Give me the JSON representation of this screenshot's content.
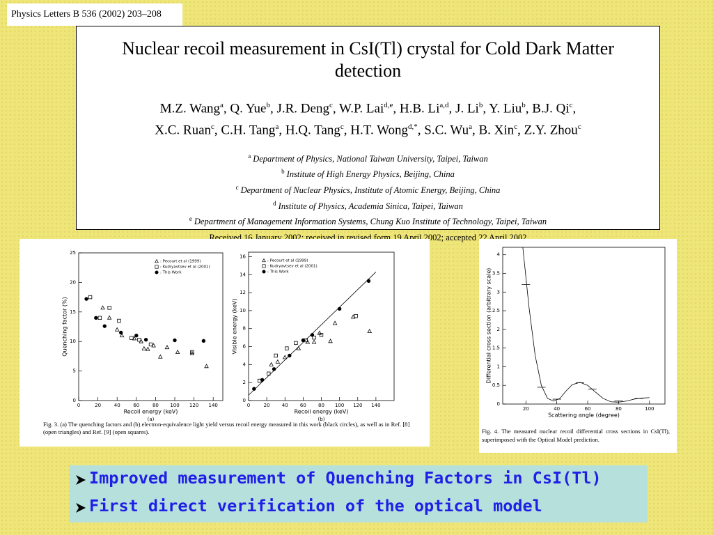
{
  "header": {
    "citation": "Physics Letters B 536 (2002) 203–208"
  },
  "paper": {
    "title": "Nuclear recoil measurement in CsI(Tl) crystal for Cold Dark Matter detection",
    "author_lines": [
      [
        {
          "text": "M.Z. Wang",
          "sup": "a"
        },
        {
          "text": ", Q. Yue",
          "sup": "b"
        },
        {
          "text": ", J.R. Deng",
          "sup": "c"
        },
        {
          "text": ", W.P. Lai",
          "sup": "d,e"
        },
        {
          "text": ", H.B. Li",
          "sup": "a,d"
        },
        {
          "text": ", J. Li",
          "sup": "b"
        },
        {
          "text": ", Y. Liu",
          "sup": "b"
        },
        {
          "text": ", B.J. Qi",
          "sup": "c"
        },
        {
          "text": ","
        }
      ],
      [
        {
          "text": "X.C. Ruan",
          "sup": "c"
        },
        {
          "text": ", C.H. Tang",
          "sup": "a"
        },
        {
          "text": ", H.Q. Tang",
          "sup": "c"
        },
        {
          "text": ", H.T. Wong",
          "sup": "d,*"
        },
        {
          "text": ", S.C. Wu",
          "sup": "a"
        },
        {
          "text": ", B.  Xin",
          "sup": "c"
        },
        {
          "text": ", Z.Y. Zhou",
          "sup": "c"
        }
      ]
    ],
    "affiliations": [
      {
        "mark": "a",
        "text": "Department of Physics, National Taiwan University, Taipei, Taiwan"
      },
      {
        "mark": "b",
        "text": "Institute of High Energy Physics, Beijing, China"
      },
      {
        "mark": "c",
        "text": "Department of Nuclear Physics, Institute of Atomic Energy, Beijing, China"
      },
      {
        "mark": "d",
        "text": "Institute of Physics, Academia Sinica, Taipei, Taiwan"
      },
      {
        "mark": "e",
        "text": "Department of Management Information Systems, Chung Kuo Institute of Technology, Taipei, Taiwan"
      }
    ],
    "received": "Received 16 January 2002; received in revised form 19 April 2002; accepted 22 April 2002"
  },
  "chart_data": [
    {
      "type": "scatter",
      "x_label": "Recoil energy (keV)",
      "y_label": "Quenching factor (%)",
      "panel_label": "(a)",
      "xlim": [
        0,
        150
      ],
      "xticks": [
        0,
        20,
        40,
        60,
        80,
        100,
        120,
        140
      ],
      "ylim": [
        0,
        25
      ],
      "yticks": [
        0,
        5,
        10,
        15,
        20,
        25
      ],
      "legend": "upper right",
      "series": [
        {
          "name": ": Pecourt et al (1999)",
          "marker": "triangle",
          "color": "#000000",
          "x": [
            25,
            32,
            40,
            45,
            58,
            65,
            68,
            72,
            78,
            85,
            92,
            103,
            118,
            133
          ],
          "values": [
            15.7,
            14,
            12,
            11,
            10.5,
            10,
            8.8,
            8.7,
            9.3,
            7.4,
            9,
            8.2,
            8,
            5.8
          ]
        },
        {
          "name": ": Kudryavtsev et al (2001)",
          "marker": "square",
          "color": "#000000",
          "x": [
            12,
            22,
            32,
            42,
            55,
            63,
            75,
            118
          ],
          "values": [
            17.5,
            14,
            15.7,
            13.5,
            10.6,
            10.3,
            9.5,
            8.2
          ]
        },
        {
          "name": ": This Work",
          "marker": "circle",
          "color": "#000000",
          "x": [
            8,
            18,
            27,
            44,
            60,
            70,
            100,
            130
          ],
          "values": [
            17.2,
            14,
            12.6,
            11.5,
            11,
            10.3,
            10.2,
            10.1
          ]
        }
      ]
    },
    {
      "type": "scatter",
      "x_label": "Recoil energy (keV)",
      "y_label": "Visible energy (keV)",
      "panel_label": "(b)",
      "xlim": [
        0,
        160
      ],
      "xticks": [
        0,
        20,
        40,
        60,
        80,
        100,
        120,
        140
      ],
      "ylim": [
        0,
        16.5
      ],
      "yticks": [
        0,
        2,
        4,
        6,
        8,
        10,
        12,
        14,
        16
      ],
      "legend": "upper left",
      "series": [
        {
          "name": ": Pecourt et al (1999)",
          "marker": "triangle",
          "color": "#000000",
          "x": [
            25,
            32,
            40,
            55,
            65,
            72,
            78,
            90,
            95,
            115,
            133
          ],
          "values": [
            4,
            4.3,
            4.8,
            5.8,
            6.5,
            6.5,
            7.5,
            6.6,
            8.6,
            9.3,
            7.7
          ]
        },
        {
          "name": ": Kudryavtsev et al (2001)",
          "marker": "square",
          "color": "#000000",
          "x": [
            12,
            22,
            30,
            42,
            52,
            63,
            72,
            80,
            118
          ],
          "values": [
            2.2,
            3,
            5,
            5.8,
            6.4,
            6.7,
            7,
            7.3,
            9.4
          ]
        },
        {
          "name": ": This Work",
          "marker": "circle",
          "color": "#000000",
          "x": [
            6,
            15,
            28,
            45,
            60,
            70,
            100,
            132
          ],
          "values": [
            1.3,
            2.3,
            3.5,
            5,
            6.7,
            7.3,
            10.2,
            13.3
          ]
        },
        {
          "marker": "line",
          "color": "#000000",
          "x": [
            0,
            140
          ],
          "values": [
            0.6,
            14.3
          ]
        }
      ]
    },
    {
      "type": "line",
      "x_label": "Scattering angle (degree)",
      "y_label": "Differential cross section (arbitrary scale)",
      "xlim": [
        5,
        110
      ],
      "xticks": [
        20,
        40,
        60,
        80,
        100
      ],
      "ylim": [
        0,
        4.2
      ],
      "yticks": [
        0,
        0.5,
        1,
        1.5,
        2,
        2.5,
        3,
        3.5,
        4
      ],
      "series": [
        {
          "marker": "line",
          "color": "#000000",
          "x": [
            18,
            22,
            26,
            30,
            34,
            38,
            42,
            46,
            50,
            55,
            60,
            65,
            70,
            75,
            80,
            85,
            90,
            95,
            100
          ],
          "values": [
            4.2,
            2.6,
            1.3,
            0.5,
            0.15,
            0.08,
            0.15,
            0.35,
            0.52,
            0.58,
            0.5,
            0.32,
            0.15,
            0.06,
            0.05,
            0.08,
            0.13,
            0.16,
            0.17
          ]
        },
        {
          "marker": "hbar",
          "color": "#000000",
          "x": [
            20,
            30,
            40,
            55,
            63,
            80,
            93
          ],
          "values": [
            3.2,
            0.45,
            0.13,
            0.57,
            0.4,
            0.08,
            0.15
          ]
        }
      ]
    }
  ],
  "captions": {
    "fig3": "Fig. 3. (a) The quenching factors and (b) electron-equivalence light yield versus recoil energy measured in this work (black circles), as well as in Ref. [8] (open triangles) and Ref. [9] (open squares).",
    "fig4": "Fig. 4. The measured nuclear recoil differential cross sections in CsI(Tl), superimposed with the Optical Model prediction."
  },
  "bullets": [
    "Improved measurement of Quenching Factors in CsI(Tl)",
    "First direct verification of the optical model"
  ]
}
